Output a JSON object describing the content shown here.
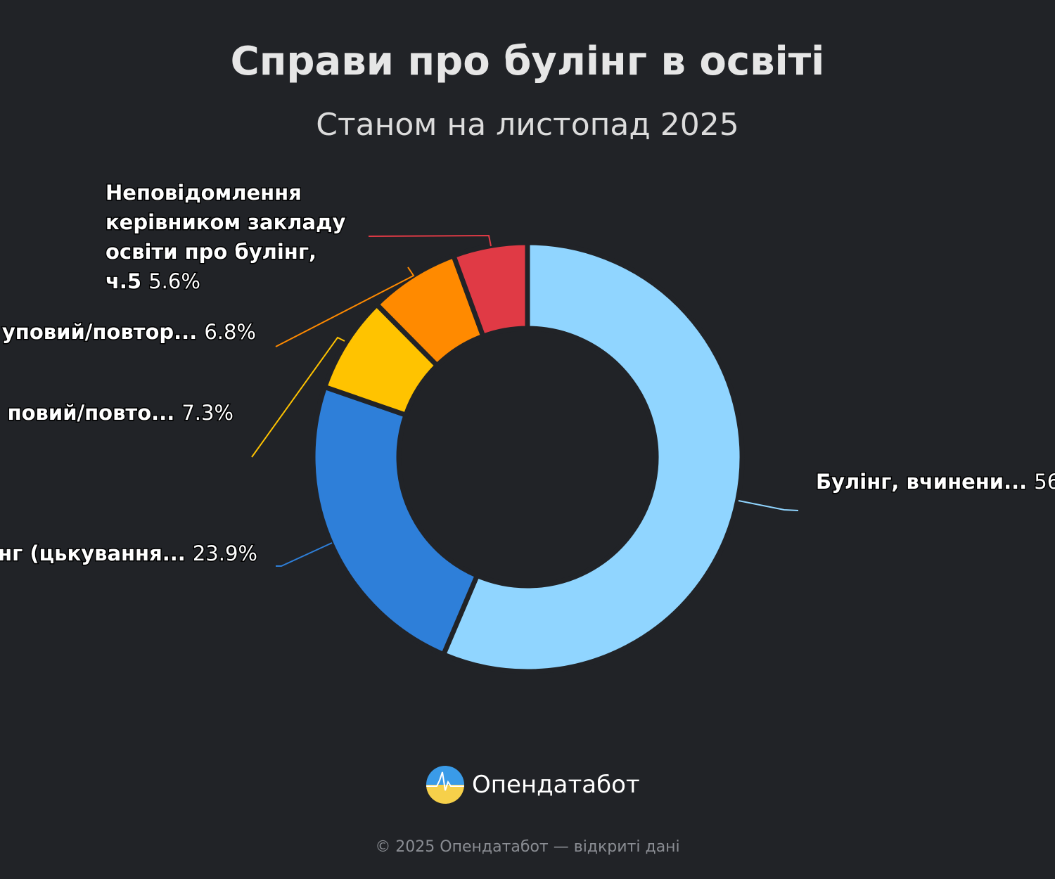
{
  "chart_data": {
    "type": "pie",
    "variant": "donut",
    "title": "Справи про булінг в освіті",
    "subtitle": "Станом на листопад 2025",
    "slices": [
      {
        "label": "Булінг, вчинени...",
        "pct_label": "56",
        "value": 56.4,
        "color": "#90d5ff"
      },
      {
        "label": "нг (цькування...",
        "pct_label": "23.9%",
        "value": 23.9,
        "color": "#2e7fd9"
      },
      {
        "label": "повий/повто...",
        "pct_label": "7.3%",
        "value": 7.3,
        "color": "#ffc300"
      },
      {
        "label": "уповий/повтор...",
        "pct_label": "6.8%",
        "value": 6.8,
        "color": "#ff8a00"
      },
      {
        "label_lines": [
          "Неповідомлення",
          "керівником закладу",
          "освіти про булінг,",
          "ч.5"
        ],
        "pct_label": "5.6%",
        "value": 5.6,
        "color": "#e03a45"
      }
    ]
  },
  "brand": {
    "name": "Опендатабот",
    "logo_icon": "opendatabot-logo-icon"
  },
  "footer": "© 2025 Опендатабот — відкриті дані"
}
